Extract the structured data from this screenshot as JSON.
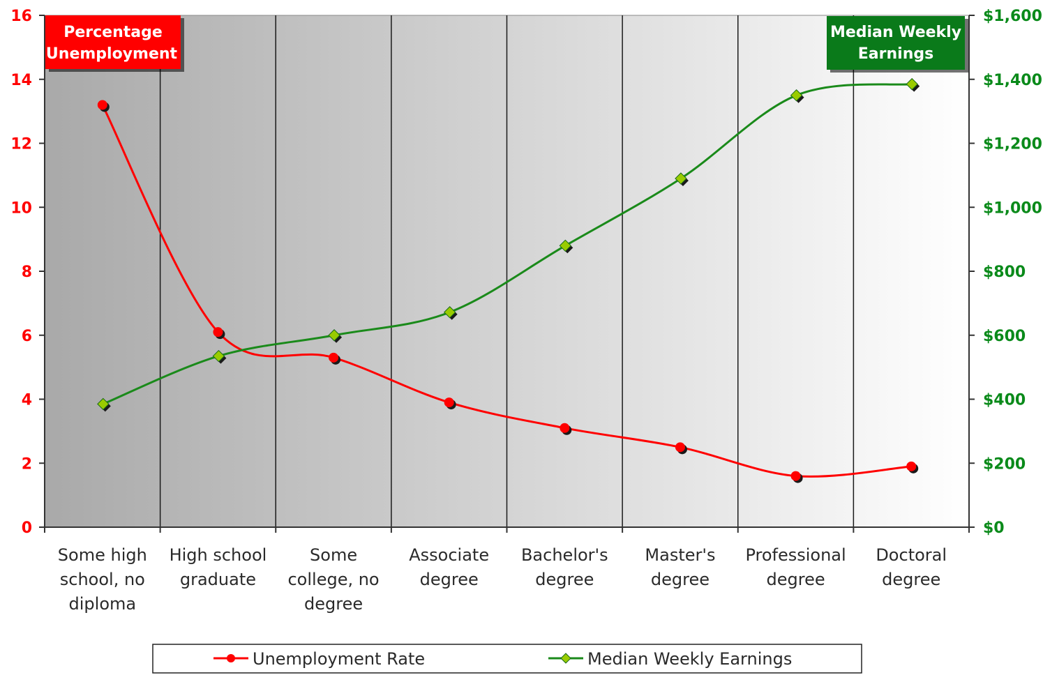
{
  "chart_data": {
    "type": "line",
    "categories": [
      [
        "Some high",
        "school, no",
        "diploma"
      ],
      [
        "High school",
        "graduate"
      ],
      [
        "Some",
        "college, no",
        "degree"
      ],
      [
        "Associate",
        "degree"
      ],
      [
        "Bachelor's",
        "degree"
      ],
      [
        "Master's",
        "degree"
      ],
      [
        "Professional",
        "degree"
      ],
      [
        "Doctoral",
        "degree"
      ]
    ],
    "series": [
      {
        "name": "Unemployment Rate",
        "axis": "left",
        "color": "#ff0000",
        "values": [
          13.2,
          6.1,
          5.3,
          3.9,
          3.1,
          2.5,
          1.6,
          1.9
        ]
      },
      {
        "name": "Median Weekly Earnings",
        "axis": "right",
        "color": "#1a8a1a",
        "marker_color": "#99cc00",
        "values": [
          385,
          535,
          600,
          672,
          880,
          1090,
          1350,
          1385
        ]
      }
    ],
    "left_axis": {
      "title": [
        "Percentage",
        "Unemployment"
      ],
      "title_bg": "#ff0000",
      "ylim": [
        0,
        16
      ],
      "ticks": [
        0,
        2,
        4,
        6,
        8,
        10,
        12,
        14,
        16
      ],
      "tick_labels": [
        "0",
        "2",
        "4",
        "6",
        "8",
        "10",
        "12",
        "14",
        "16"
      ],
      "color": "#ff0000"
    },
    "right_axis": {
      "title": [
        "Median Weekly",
        "Earnings"
      ],
      "title_bg": "#0a7a1a",
      "ylim": [
        0,
        1600
      ],
      "ticks": [
        0,
        200,
        400,
        600,
        800,
        1000,
        1200,
        1400,
        1600
      ],
      "tick_labels": [
        "$0",
        "$200",
        "$400",
        "$600",
        "$800",
        "$1,000",
        "$1,200",
        "$1,400",
        "$1,600"
      ],
      "color": "#0a8a1a"
    },
    "legend": {
      "placement": "bottom",
      "items": [
        "Unemployment Rate",
        "Median Weekly Earnings"
      ]
    },
    "background_gradient": [
      "#a9a9a9",
      "#ffffff"
    ],
    "grid": "vertical"
  }
}
